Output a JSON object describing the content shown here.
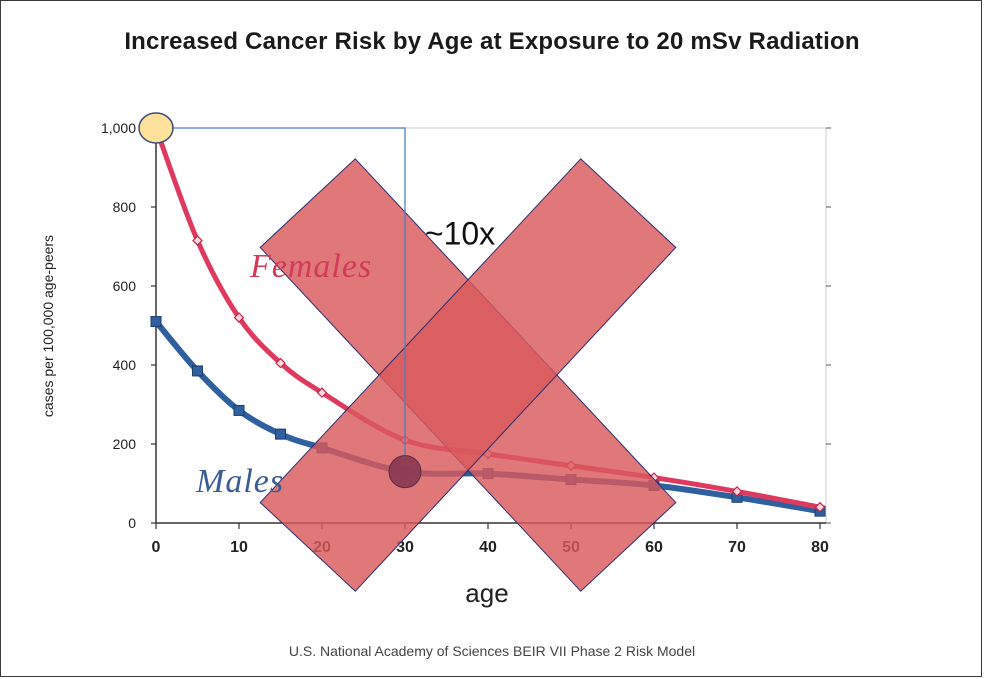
{
  "title": "Increased Cancer Risk by Age at Exposure to  20 mSv  Radiation",
  "source": "U.S. National Academy of Sciences BEIR VII Phase 2 Risk Model",
  "chart_data": {
    "type": "line",
    "xlabel": "age",
    "ylabel": "cases per 100,000 age-peers",
    "xlim": [
      0,
      80
    ],
    "ylim": [
      0,
      1000
    ],
    "x_ticks": [
      0,
      10,
      20,
      30,
      40,
      50,
      60,
      70,
      80
    ],
    "y_ticks": [
      0,
      200,
      400,
      600,
      800,
      1000
    ],
    "y_tick_labels": [
      "0",
      "200",
      "400",
      "600",
      "800",
      "1,000"
    ],
    "grid": false,
    "series": [
      {
        "name": "Females",
        "color": "#e0395f",
        "marker": "diamond",
        "x": [
          0,
          5,
          10,
          15,
          20,
          30,
          40,
          50,
          60,
          70,
          80
        ],
        "y": [
          1000,
          715,
          520,
          405,
          330,
          210,
          175,
          145,
          115,
          80,
          40
        ]
      },
      {
        "name": "Males",
        "color": "#2f5f9e",
        "marker": "square",
        "x": [
          0,
          5,
          10,
          15,
          20,
          30,
          40,
          50,
          60,
          70,
          80
        ],
        "y": [
          510,
          385,
          285,
          225,
          190,
          130,
          125,
          110,
          95,
          65,
          30
        ]
      }
    ],
    "annotations": [
      {
        "text": "~10x",
        "x": 33,
        "y": 740
      }
    ],
    "overlay": "cross-out",
    "colors": {
      "cross_fill": "#d9595c",
      "cross_stroke": "#2b2f6e",
      "highlight_top": "#fbe199",
      "highlight_bottom": "#8a3a52",
      "guide_line": "#4a7fc0"
    }
  }
}
